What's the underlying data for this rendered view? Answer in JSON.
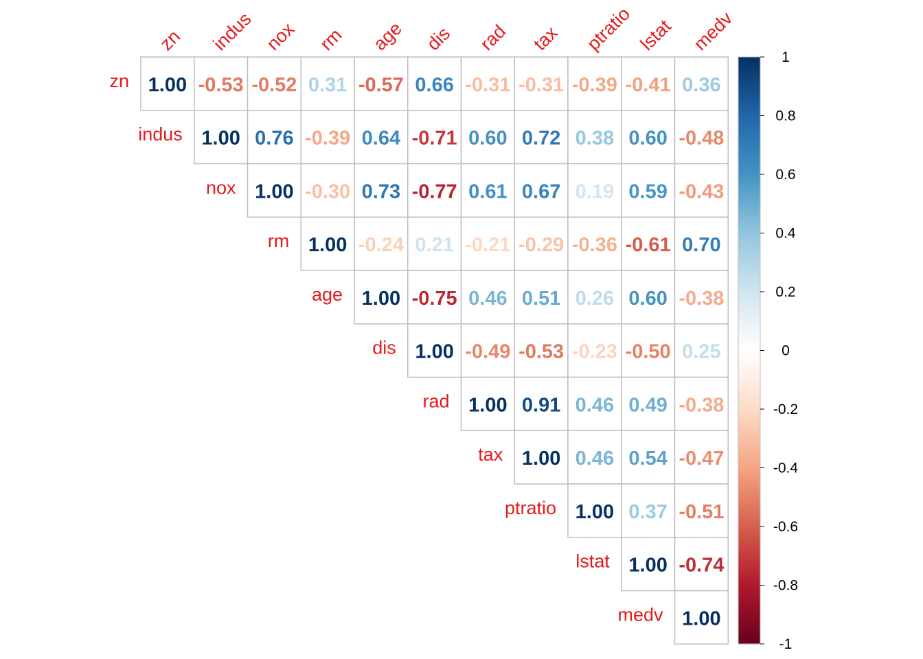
{
  "chart_data": {
    "type": "heatmap",
    "layout": "upper-triangle",
    "variables": [
      "zn",
      "indus",
      "nox",
      "rm",
      "age",
      "dis",
      "rad",
      "tax",
      "ptratio",
      "lstat",
      "medv"
    ],
    "matrix": [
      [
        "1.00",
        "-0.53",
        "-0.52",
        "0.31",
        "-0.57",
        "0.66",
        "-0.31",
        "-0.31",
        "-0.39",
        "-0.41",
        "0.36"
      ],
      [
        null,
        "1.00",
        "0.76",
        "-0.39",
        "0.64",
        "-0.71",
        "0.60",
        "0.72",
        "0.38",
        "0.60",
        "-0.48"
      ],
      [
        null,
        null,
        "1.00",
        "-0.30",
        "0.73",
        "-0.77",
        "0.61",
        "0.67",
        "0.19",
        "0.59",
        "-0.43"
      ],
      [
        null,
        null,
        null,
        "1.00",
        "-0.24",
        "0.21",
        "-0.21",
        "-0.29",
        "-0.36",
        "-0.61",
        "0.70"
      ],
      [
        null,
        null,
        null,
        null,
        "1.00",
        "-0.75",
        "0.46",
        "0.51",
        "0.26",
        "0.60",
        "-0.38"
      ],
      [
        null,
        null,
        null,
        null,
        null,
        "1.00",
        "-0.49",
        "-0.53",
        "-0.23",
        "-0.50",
        "0.25"
      ],
      [
        null,
        null,
        null,
        null,
        null,
        null,
        "1.00",
        "0.91",
        "0.46",
        "0.49",
        "-0.38"
      ],
      [
        null,
        null,
        null,
        null,
        null,
        null,
        null,
        "1.00",
        "0.46",
        "0.54",
        "-0.47"
      ],
      [
        null,
        null,
        null,
        null,
        null,
        null,
        null,
        null,
        "1.00",
        "0.37",
        "-0.51"
      ],
      [
        null,
        null,
        null,
        null,
        null,
        null,
        null,
        null,
        null,
        "1.00",
        "-0.74"
      ],
      [
        null,
        null,
        null,
        null,
        null,
        null,
        null,
        null,
        null,
        null,
        "1.00"
      ]
    ],
    "colorbar": {
      "range": [
        -1,
        1
      ],
      "ticks": [
        "1",
        "0.8",
        "0.6",
        "0.4",
        "0.2",
        "0",
        "-0.2",
        "-0.4",
        "-0.6",
        "-0.8",
        "-1"
      ],
      "palette": [
        "#67001F",
        "#B2182B",
        "#D6604D",
        "#F4A582",
        "#FDDBC7",
        "#FFFFFF",
        "#D1E5F0",
        "#92C5DE",
        "#4393C3",
        "#2166AC",
        "#053061"
      ]
    },
    "label_color": "#E41A1C",
    "grid_color": "#BEBEBE"
  }
}
